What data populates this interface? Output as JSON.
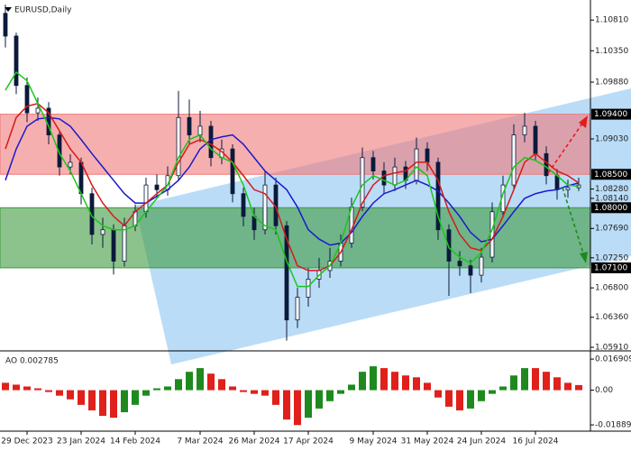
{
  "chart_data": [
    {
      "type": "candlestick",
      "title": "EURUSD,Daily",
      "ylim": [
        1.0587,
        1.1111
      ],
      "yticks": [
        {
          "value": 1.1081,
          "label": "1.10810"
        },
        {
          "value": 1.1035,
          "label": "1.10350"
        },
        {
          "value": 1.0988,
          "label": "1.09880"
        },
        {
          "value": 1.0903,
          "label": "1.09030"
        },
        {
          "value": 1.0828,
          "label": "1.08280"
        },
        {
          "value": 1.0814,
          "label": "1.08140"
        },
        {
          "value": 1.0769,
          "label": "1.07690"
        },
        {
          "value": 1.0725,
          "label": "1.07250"
        },
        {
          "value": 1.068,
          "label": "1.06800"
        },
        {
          "value": 1.0636,
          "label": "1.06360"
        },
        {
          "value": 1.0591,
          "label": "1.05910"
        }
      ],
      "levels": [
        {
          "value": 1.094,
          "label": "1.09400"
        },
        {
          "value": 1.085,
          "label": "1.08500"
        },
        {
          "value": 1.08,
          "label": "1.08000"
        },
        {
          "value": 1.071,
          "label": "1.07100"
        }
      ],
      "zones": [
        {
          "from": 1.085,
          "to": 1.094,
          "color": "#f07a7a"
        },
        {
          "from": 1.071,
          "to": 1.08,
          "color": "#3f9a3f"
        }
      ],
      "candle_color": "#0b1a3a",
      "categories": [
        null,
        null,
        "29 Dec 2023",
        null,
        null,
        null,
        null,
        "23 Jan 2024",
        null,
        null,
        null,
        null,
        "14 Feb 2024",
        null,
        null,
        null,
        null,
        null,
        "7 Mar 2024",
        null,
        null,
        null,
        null,
        "26 Mar 2024",
        null,
        null,
        null,
        null,
        "17 Apr 2024",
        null,
        null,
        null,
        null,
        null,
        "9 May 2024",
        null,
        null,
        null,
        null,
        "31 May 2024",
        null,
        null,
        null,
        null,
        "24 Jun 2024",
        null,
        null,
        null,
        null,
        "16 Jul 2024",
        null,
        null,
        null,
        null
      ],
      "ohlc": [
        [
          1.1091,
          1.1104,
          1.104,
          1.1057
        ],
        [
          1.1057,
          1.1062,
          1.097,
          1.0983
        ],
        [
          1.0983,
          1.0995,
          1.0928,
          1.0942
        ],
        [
          1.0942,
          1.0965,
          1.093,
          1.0949
        ],
        [
          1.0949,
          1.0958,
          1.0895,
          1.0909
        ],
        [
          1.0909,
          1.0915,
          1.0848,
          1.0861
        ],
        [
          1.0861,
          1.088,
          1.085,
          1.0868
        ],
        [
          1.0868,
          1.0875,
          1.0805,
          1.0821
        ],
        [
          1.0821,
          1.083,
          1.0745,
          1.076
        ],
        [
          1.076,
          1.0785,
          1.074,
          1.0767
        ],
        [
          1.0767,
          1.0775,
          1.07,
          1.072
        ],
        [
          1.072,
          1.0785,
          1.0712,
          1.0773
        ],
        [
          1.0773,
          1.0805,
          1.0765,
          1.0794
        ],
        [
          1.0794,
          1.0845,
          1.0785,
          1.0834
        ],
        [
          1.0834,
          1.085,
          1.0815,
          1.0827
        ],
        [
          1.0827,
          1.0862,
          1.0818,
          1.0848
        ],
        [
          1.0848,
          1.0975,
          1.084,
          1.0935
        ],
        [
          1.0935,
          1.0962,
          1.0895,
          1.0909
        ],
        [
          1.0909,
          1.0945,
          1.0898,
          1.0922
        ],
        [
          1.0922,
          1.093,
          1.0862,
          1.0875
        ],
        [
          1.0875,
          1.0902,
          1.0865,
          1.0888
        ],
        [
          1.0888,
          1.0895,
          1.0808,
          1.0821
        ],
        [
          1.0821,
          1.083,
          1.0772,
          1.0787
        ],
        [
          1.0787,
          1.08,
          1.0752,
          1.0767
        ],
        [
          1.0767,
          1.0855,
          1.076,
          1.0834
        ],
        [
          1.0834,
          1.0845,
          1.076,
          1.0773
        ],
        [
          1.0773,
          1.078,
          1.0601,
          1.0632
        ],
        [
          1.0632,
          1.068,
          1.062,
          1.0666
        ],
        [
          1.0666,
          1.071,
          1.0652,
          1.0693
        ],
        [
          1.0693,
          1.0725,
          1.068,
          1.0706
        ],
        [
          1.0706,
          1.074,
          1.0695,
          1.072
        ],
        [
          1.072,
          1.076,
          1.0712,
          1.0747
        ],
        [
          1.0747,
          1.0815,
          1.074,
          1.0801
        ],
        [
          1.0801,
          1.089,
          1.0795,
          1.0875
        ],
        [
          1.0875,
          1.0885,
          1.0842,
          1.0855
        ],
        [
          1.0855,
          1.0868,
          1.082,
          1.0834
        ],
        [
          1.0834,
          1.0875,
          1.0825,
          1.0861
        ],
        [
          1.0861,
          1.087,
          1.0828,
          1.0841
        ],
        [
          1.0841,
          1.0905,
          1.0835,
          1.0888
        ],
        [
          1.0888,
          1.0898,
          1.0855,
          1.0868
        ],
        [
          1.0868,
          1.0875,
          1.0752,
          1.0767
        ],
        [
          1.0767,
          1.0775,
          1.0668,
          1.072
        ],
        [
          1.072,
          1.0735,
          1.0698,
          1.0713
        ],
        [
          1.0713,
          1.0722,
          1.0672,
          1.0699
        ],
        [
          1.0699,
          1.074,
          1.0688,
          1.0726
        ],
        [
          1.0726,
          1.0808,
          1.0718,
          1.0794
        ],
        [
          1.0794,
          1.0848,
          1.0785,
          1.0834
        ],
        [
          1.0834,
          1.0925,
          1.0828,
          1.0909
        ],
        [
          1.0909,
          1.0942,
          1.0898,
          1.0922
        ],
        [
          1.0922,
          1.093,
          1.087,
          1.0881
        ],
        [
          1.0881,
          1.0892,
          1.0835,
          1.0848
        ],
        [
          1.0848,
          1.0858,
          1.0812,
          1.0827
        ],
        [
          1.0827,
          1.0842,
          1.0815,
          1.083
        ],
        [
          1.083,
          1.0845,
          1.0825,
          1.0834
        ]
      ],
      "series": [
        {
          "color": "#1a1acc",
          "values": [
            1.0841,
            1.0888,
            1.0922,
            1.0933,
            1.0935,
            1.0933,
            1.0922,
            1.0902,
            1.0881,
            1.0861,
            1.0841,
            1.0821,
            1.0807,
            1.0807,
            1.0817,
            1.0827,
            1.0841,
            1.0861,
            1.0888,
            1.0902,
            1.0906,
            1.0909,
            1.0895,
            1.0875,
            1.0855,
            1.0841,
            1.0827,
            1.0801,
            1.0767,
            1.0753,
            1.0744,
            1.0747,
            1.0763,
            1.0787,
            1.0807,
            1.0821,
            1.0827,
            1.0834,
            1.0841,
            1.0834,
            1.0825,
            1.0807,
            1.0787,
            1.0763,
            1.0749,
            1.0753,
            1.0773,
            1.0794,
            1.0814,
            1.0821,
            1.0825,
            1.0827,
            1.0833,
            1.0837
          ]
        },
        {
          "color": "#d61a1a",
          "values": [
            1.0888,
            1.0935,
            1.0952,
            1.0956,
            1.0942,
            1.0915,
            1.0888,
            1.0868,
            1.0834,
            1.0807,
            1.0787,
            1.0773,
            1.0794,
            1.0807,
            1.0821,
            1.0834,
            1.0868,
            1.0895,
            1.0902,
            1.0895,
            1.0884,
            1.0868,
            1.0848,
            1.0827,
            1.0821,
            1.0801,
            1.0753,
            1.0713,
            1.0706,
            1.0706,
            1.0713,
            1.0733,
            1.0767,
            1.0807,
            1.0834,
            1.0848,
            1.0852,
            1.0855,
            1.0868,
            1.0868,
            1.0841,
            1.0794,
            1.076,
            1.074,
            1.0736,
            1.0753,
            1.0787,
            1.0827,
            1.0868,
            1.0881,
            1.0868,
            1.0855,
            1.0848,
            1.0837
          ]
        },
        {
          "color": "#19c819",
          "values": [
            1.0976,
            1.1003,
            1.099,
            1.0956,
            1.0922,
            1.0881,
            1.0855,
            1.0821,
            1.0787,
            1.0773,
            1.0767,
            1.0767,
            1.0773,
            1.0794,
            1.0814,
            1.0834,
            1.0875,
            1.0902,
            1.0909,
            1.0888,
            1.0875,
            1.0868,
            1.0834,
            1.0787,
            1.0773,
            1.0767,
            1.072,
            1.0682,
            1.0682,
            1.0699,
            1.0713,
            1.0747,
            1.0801,
            1.0834,
            1.0848,
            1.0841,
            1.0834,
            1.0841,
            1.0861,
            1.0848,
            1.0787,
            1.074,
            1.0726,
            1.0717,
            1.0733,
            1.0767,
            1.0821,
            1.0861,
            1.0875,
            1.0871,
            1.0861,
            1.0848,
            1.0834,
            1.0832
          ]
        }
      ]
    },
    {
      "type": "oscillator",
      "title": "AO 0.002785",
      "ylim": [
        -0.0223,
        0.0199
      ],
      "yticks": [
        0.016909,
        {
          "value": 0,
          "label": "0.00"
        },
        -0.018898
      ],
      "up_color": "#1e8a1e",
      "down_color": "#e0201a",
      "values": [
        0.004,
        0.003,
        0.002,
        0.001,
        -0.001,
        -0.003,
        -0.005,
        -0.008,
        -0.011,
        -0.014,
        -0.015,
        -0.012,
        -0.008,
        -0.003,
        0.001,
        0.002,
        0.006,
        0.01,
        0.012,
        0.009,
        0.006,
        0.002,
        -0.001,
        -0.002,
        -0.003,
        -0.008,
        -0.016,
        -0.019,
        -0.015,
        -0.01,
        -0.006,
        -0.002,
        0.003,
        0.01,
        0.013,
        0.012,
        0.01,
        0.008,
        0.007,
        0.004,
        -0.004,
        -0.009,
        -0.011,
        -0.01,
        -0.006,
        -0.002,
        0.002,
        0.008,
        0.012,
        0.012,
        0.01,
        0.007,
        0.004,
        0.002785
      ]
    }
  ]
}
